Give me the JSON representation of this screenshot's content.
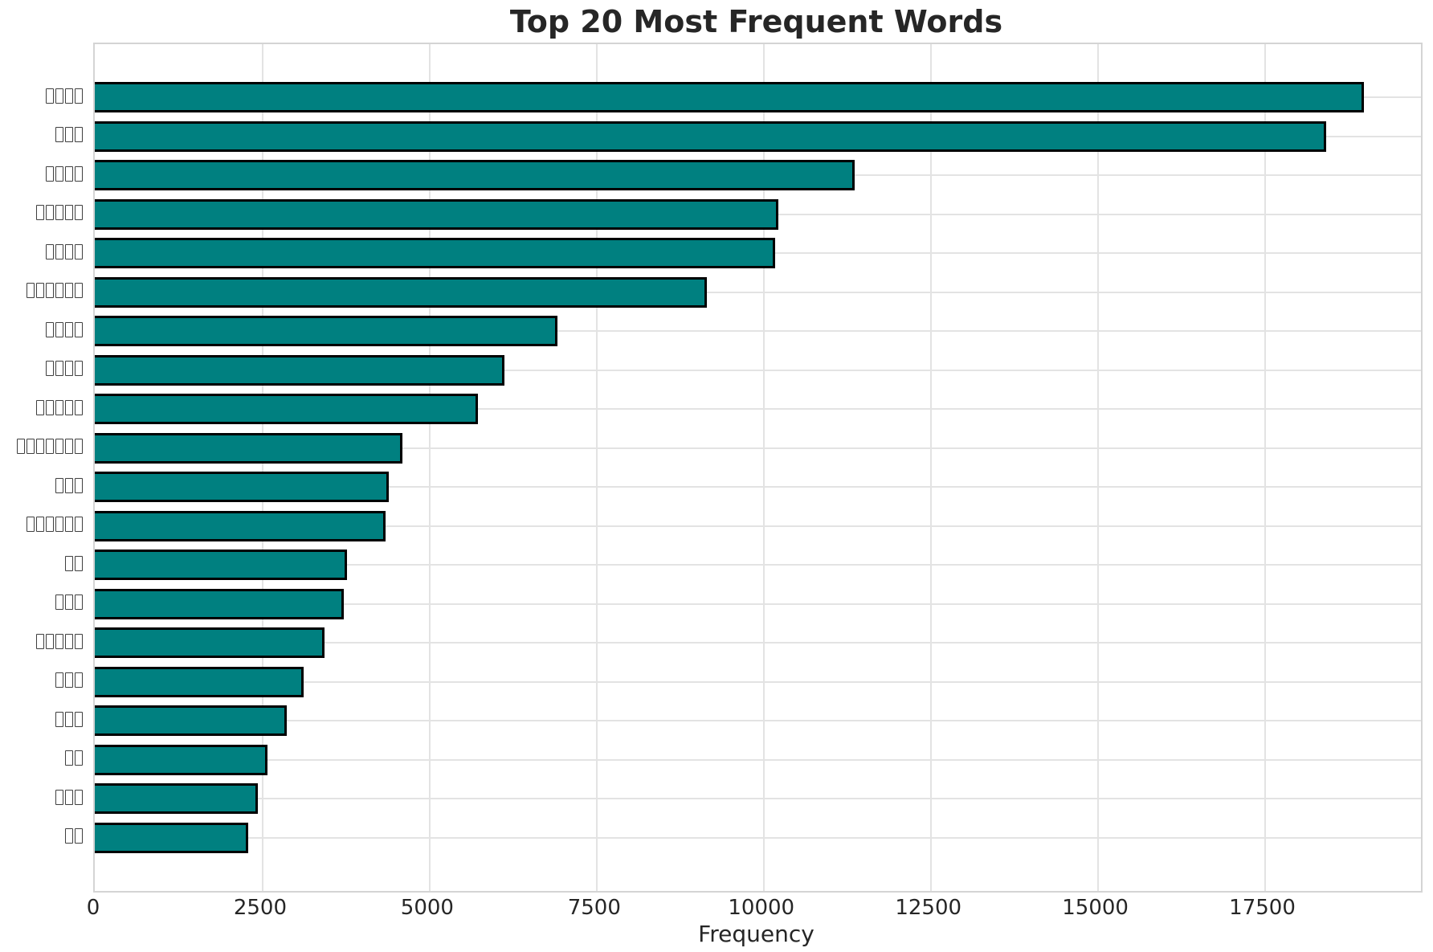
{
  "chart_data": {
    "type": "bar",
    "orientation": "horizontal",
    "title": "Top 20 Most Frequent Words",
    "xlabel": "Frequency",
    "categories": [
      "▯▯▯▯",
      "▯▯▯",
      "▯▯▯▯",
      "▯▯▯▯▯",
      "▯▯▯▯",
      "▯▯▯▯▯▯",
      "▯▯▯▯",
      "▯▯▯▯",
      "▯▯▯▯▯",
      "▯▯▯▯▯▯▯",
      "▯▯▯",
      "▯▯▯▯▯▯",
      "▯▯",
      "▯▯▯",
      "▯▯▯▯▯",
      "▯▯▯",
      "▯▯▯",
      "▯▯",
      "▯▯▯",
      "▯▯"
    ],
    "categories_display": "CJK words shown as missing-glyph tofu boxes",
    "values": [
      18960,
      18400,
      11340,
      10190,
      10150,
      9130,
      6890,
      6100,
      5700,
      4570,
      4370,
      4320,
      3740,
      3690,
      3400,
      3090,
      2840,
      2550,
      2400,
      2260
    ],
    "xticks": [
      0,
      2500,
      5000,
      7500,
      10000,
      12500,
      15000,
      17500
    ],
    "xlim": [
      0,
      19850
    ],
    "grid": true,
    "legend": "none",
    "bar_color": "#008080",
    "bar_edge_color": "#000000",
    "grid_color": "#e3e3e3",
    "text_color": "#262626",
    "background": "#ffffff"
  }
}
